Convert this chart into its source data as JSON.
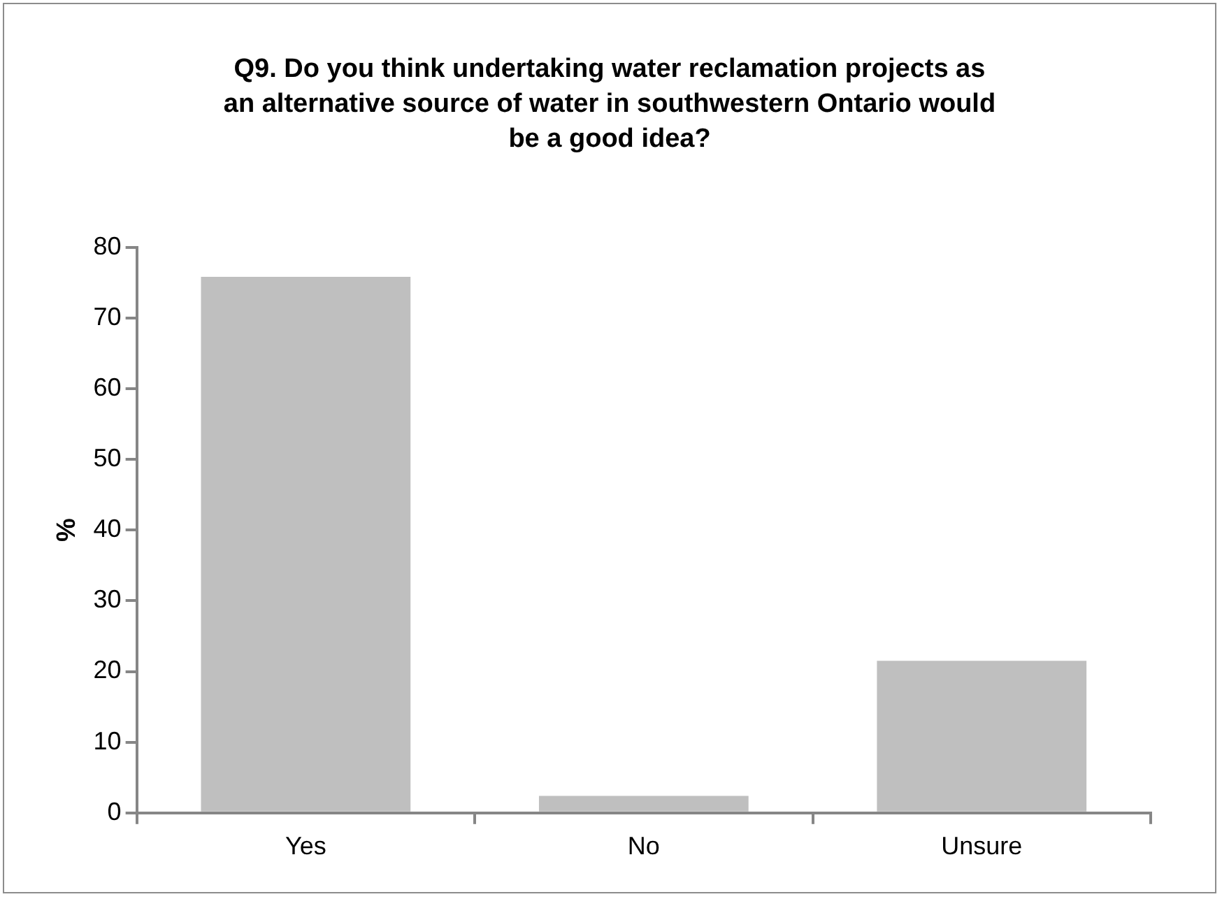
{
  "chart_data": {
    "type": "bar",
    "title": "Q9. Do you think undertaking water reclamation projects as an alternative source of water in southwestern Ontario would be a good idea?",
    "ylabel": "%",
    "categories": [
      "Yes",
      "No",
      "Unsure"
    ],
    "values": [
      75.8,
      2.4,
      21.5
    ],
    "color": "#bfbfbf",
    "ylim": [
      0,
      80
    ],
    "yticks": [
      0,
      10,
      20,
      30,
      40,
      50,
      60,
      70,
      80
    ],
    "grid": false,
    "legend": false
  }
}
